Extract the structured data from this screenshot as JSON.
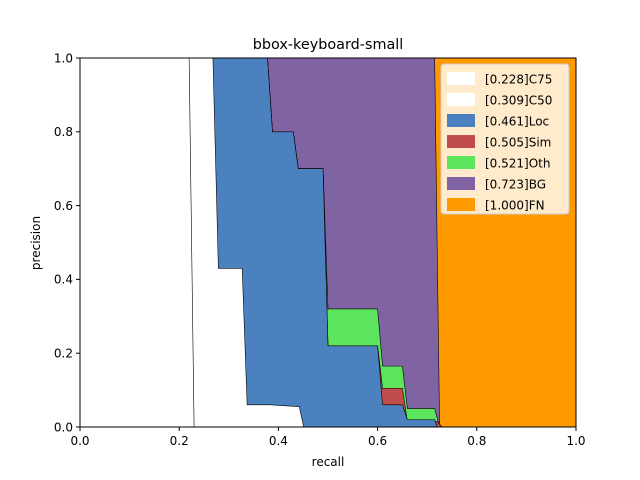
{
  "chart_data": {
    "type": "area",
    "title": "bbox-keyboard-small",
    "xlabel": "recall",
    "ylabel": "precision",
    "xlim": [
      0,
      1
    ],
    "ylim": [
      0,
      1
    ],
    "xticks": [
      "0.0",
      "0.2",
      "0.4",
      "0.6",
      "0.8",
      "1.0"
    ],
    "yticks": [
      "0.0",
      "0.2",
      "0.4",
      "0.6",
      "0.8",
      "1.0"
    ],
    "legend_position": "upper-right",
    "series": [
      {
        "name": "[0.228]C75",
        "color": "#ffffff",
        "points": [
          [
            0,
            1
          ],
          [
            0.22,
            1
          ],
          [
            0.23,
            0
          ]
        ]
      },
      {
        "name": "[0.309]C50",
        "color": "#ffffff",
        "points": [
          [
            0,
            1
          ],
          [
            0.268,
            1
          ],
          [
            0.279,
            0.43
          ],
          [
            0.327,
            0.43
          ],
          [
            0.337,
            0.06
          ],
          [
            0.384,
            0.06
          ],
          [
            0.442,
            0.055
          ],
          [
            0.451,
            0
          ]
        ]
      },
      {
        "name": "[0.461]Loc",
        "color": "#4c81bf",
        "points": [
          [
            0,
            1
          ],
          [
            0.378,
            1
          ],
          [
            0.388,
            0.8
          ],
          [
            0.43,
            0.8
          ],
          [
            0.44,
            0.7
          ],
          [
            0.49,
            0.7
          ],
          [
            0.5,
            0.22
          ],
          [
            0.6,
            0.22
          ],
          [
            0.61,
            0.06
          ],
          [
            0.65,
            0.06
          ],
          [
            0.66,
            0.02
          ],
          [
            0.715,
            0.02
          ],
          [
            0.72,
            0
          ]
        ]
      },
      {
        "name": "[0.505]Sim",
        "color": "#c04d4c",
        "points": [
          [
            0,
            1
          ],
          [
            0.378,
            1
          ],
          [
            0.388,
            0.8
          ],
          [
            0.43,
            0.8
          ],
          [
            0.44,
            0.7
          ],
          [
            0.49,
            0.7
          ],
          [
            0.5,
            0.22
          ],
          [
            0.6,
            0.22
          ],
          [
            0.61,
            0.105
          ],
          [
            0.65,
            0.105
          ],
          [
            0.66,
            0.015
          ],
          [
            0.72,
            0.015
          ],
          [
            0.73,
            0
          ]
        ]
      },
      {
        "name": "[0.521]Oth",
        "color": "#5de65d",
        "points": [
          [
            0,
            1
          ],
          [
            0.378,
            1
          ],
          [
            0.388,
            0.8
          ],
          [
            0.43,
            0.8
          ],
          [
            0.44,
            0.7
          ],
          [
            0.49,
            0.7
          ],
          [
            0.5,
            0.32
          ],
          [
            0.6,
            0.32
          ],
          [
            0.61,
            0.165
          ],
          [
            0.65,
            0.165
          ],
          [
            0.66,
            0.05
          ],
          [
            0.715,
            0.05
          ],
          [
            0.725,
            0
          ]
        ]
      },
      {
        "name": "[0.723]BG",
        "color": "#7f63a3",
        "points": [
          [
            0,
            1
          ],
          [
            0.715,
            1
          ],
          [
            0.725,
            0
          ]
        ]
      },
      {
        "name": "[1.000]FN",
        "color": "#ff9900",
        "points": [
          [
            0,
            1
          ],
          [
            1,
            1
          ],
          [
            1,
            0
          ]
        ]
      }
    ]
  }
}
